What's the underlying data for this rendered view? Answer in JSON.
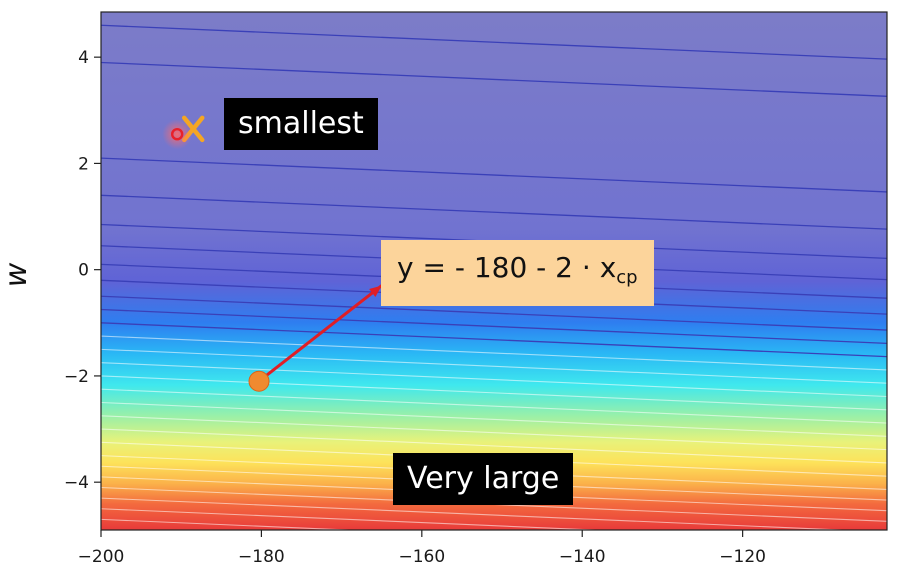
{
  "chart_data": {
    "type": "heatmap",
    "subtitle": "",
    "xlabel": "",
    "ylabel": "w",
    "xlim": [
      -200,
      -102
    ],
    "ylim": [
      -4.9,
      4.85
    ],
    "x_ticks": [
      -200,
      -180,
      -160,
      -140,
      -120
    ],
    "y_ticks": [
      4,
      2,
      0,
      -2,
      -4
    ],
    "x_tick_labels": [
      "−200",
      "−180",
      "−160",
      "−140",
      "−120"
    ],
    "y_tick_labels": [
      "4",
      "2",
      "0",
      "−2",
      "−4"
    ],
    "colormap": [
      "#7c7cc8",
      "#7173d0",
      "#5f63d6",
      "#2e7ef0",
      "#2ab8f5",
      "#3fe8ee",
      "#9af0a8",
      "#e8f27a",
      "#fde25a",
      "#fbb24a",
      "#f36a3e",
      "#e83a3a"
    ],
    "contour_slope_w_per_x": -0.0065,
    "contour_levels_w_at_xmin": [
      4.6,
      3.9,
      2.1,
      1.4,
      0.85,
      0.45,
      0.1,
      -0.2,
      -0.5,
      -0.75,
      -1.0,
      -1.25,
      -1.5,
      -1.75,
      -2.0,
      -2.25,
      -2.5,
      -2.75,
      -3.0,
      -3.25,
      -3.5,
      -3.7,
      -3.9,
      -4.1,
      -4.3,
      -4.5,
      -4.7
    ],
    "points": [
      {
        "id": "minimum-x",
        "x": -188.5,
        "w": 2.65,
        "marker": "x",
        "color": "#f5a623"
      },
      {
        "id": "minimum-circle",
        "x": -190.5,
        "w": 2.55,
        "marker": "ring",
        "color": "#e8202a"
      },
      {
        "id": "start-point",
        "x": -180.3,
        "w": -2.1,
        "marker": "dot",
        "color": "#f08a30"
      }
    ],
    "arrow": {
      "from": {
        "x": -180.3,
        "w": -2.1
      },
      "to": {
        "x": -165,
        "w": -0.3
      },
      "color": "#e01e26"
    },
    "annotations": {
      "top_label": "smallest",
      "bottom_label": "Very large",
      "formula_main": "y = - 180 - 2 · x",
      "formula_sub": "cp"
    }
  }
}
